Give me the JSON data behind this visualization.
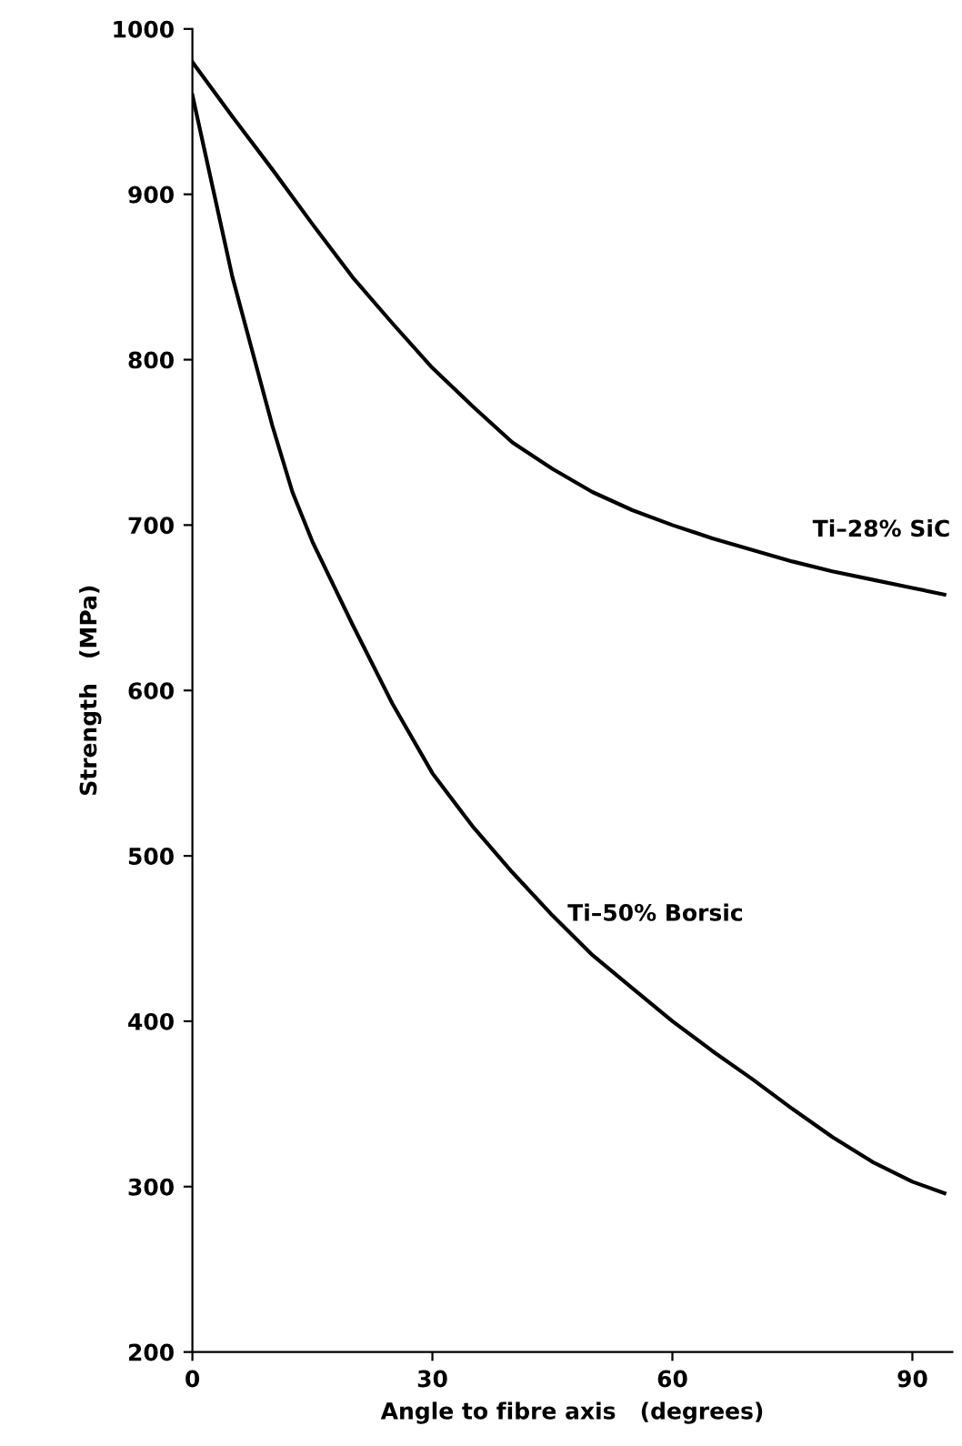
{
  "chart_data": {
    "type": "line",
    "xlabel": "Angle to fibre axis   (degrees)",
    "ylabel": "Strength   (MPa)",
    "xlim": [
      0,
      95
    ],
    "xticks": [
      0,
      30,
      60,
      90
    ],
    "ylim": [
      200,
      1000
    ],
    "yticks": [
      200,
      300,
      400,
      500,
      600,
      700,
      800,
      900,
      1000
    ],
    "grid": false,
    "legend": false,
    "marker": "none",
    "line_style": "solid",
    "series": [
      {
        "name": "Ti–28% SiC",
        "color": "#000000",
        "x": [
          0,
          5,
          10,
          15,
          20,
          25,
          30,
          35,
          40,
          45,
          50,
          55,
          60,
          65,
          70,
          75,
          80,
          85,
          90,
          94
        ],
        "values": [
          980,
          947,
          915,
          882,
          850,
          822,
          795,
          772,
          750,
          734,
          720,
          709,
          700,
          692,
          685,
          678,
          672,
          667,
          662,
          658
        ]
      },
      {
        "name": "Ti–50% Borsic",
        "color": "#000000",
        "x": [
          0,
          2.5,
          5,
          7.5,
          10,
          12.5,
          15,
          20,
          25,
          30,
          35,
          40,
          45,
          50,
          55,
          60,
          65,
          70,
          75,
          80,
          85,
          90,
          94
        ],
        "values": [
          960,
          905,
          850,
          805,
          760,
          720,
          690,
          640,
          592,
          550,
          518,
          490,
          464,
          440,
          420,
          400,
          382,
          365,
          347,
          330,
          315,
          303,
          296
        ]
      }
    ]
  }
}
